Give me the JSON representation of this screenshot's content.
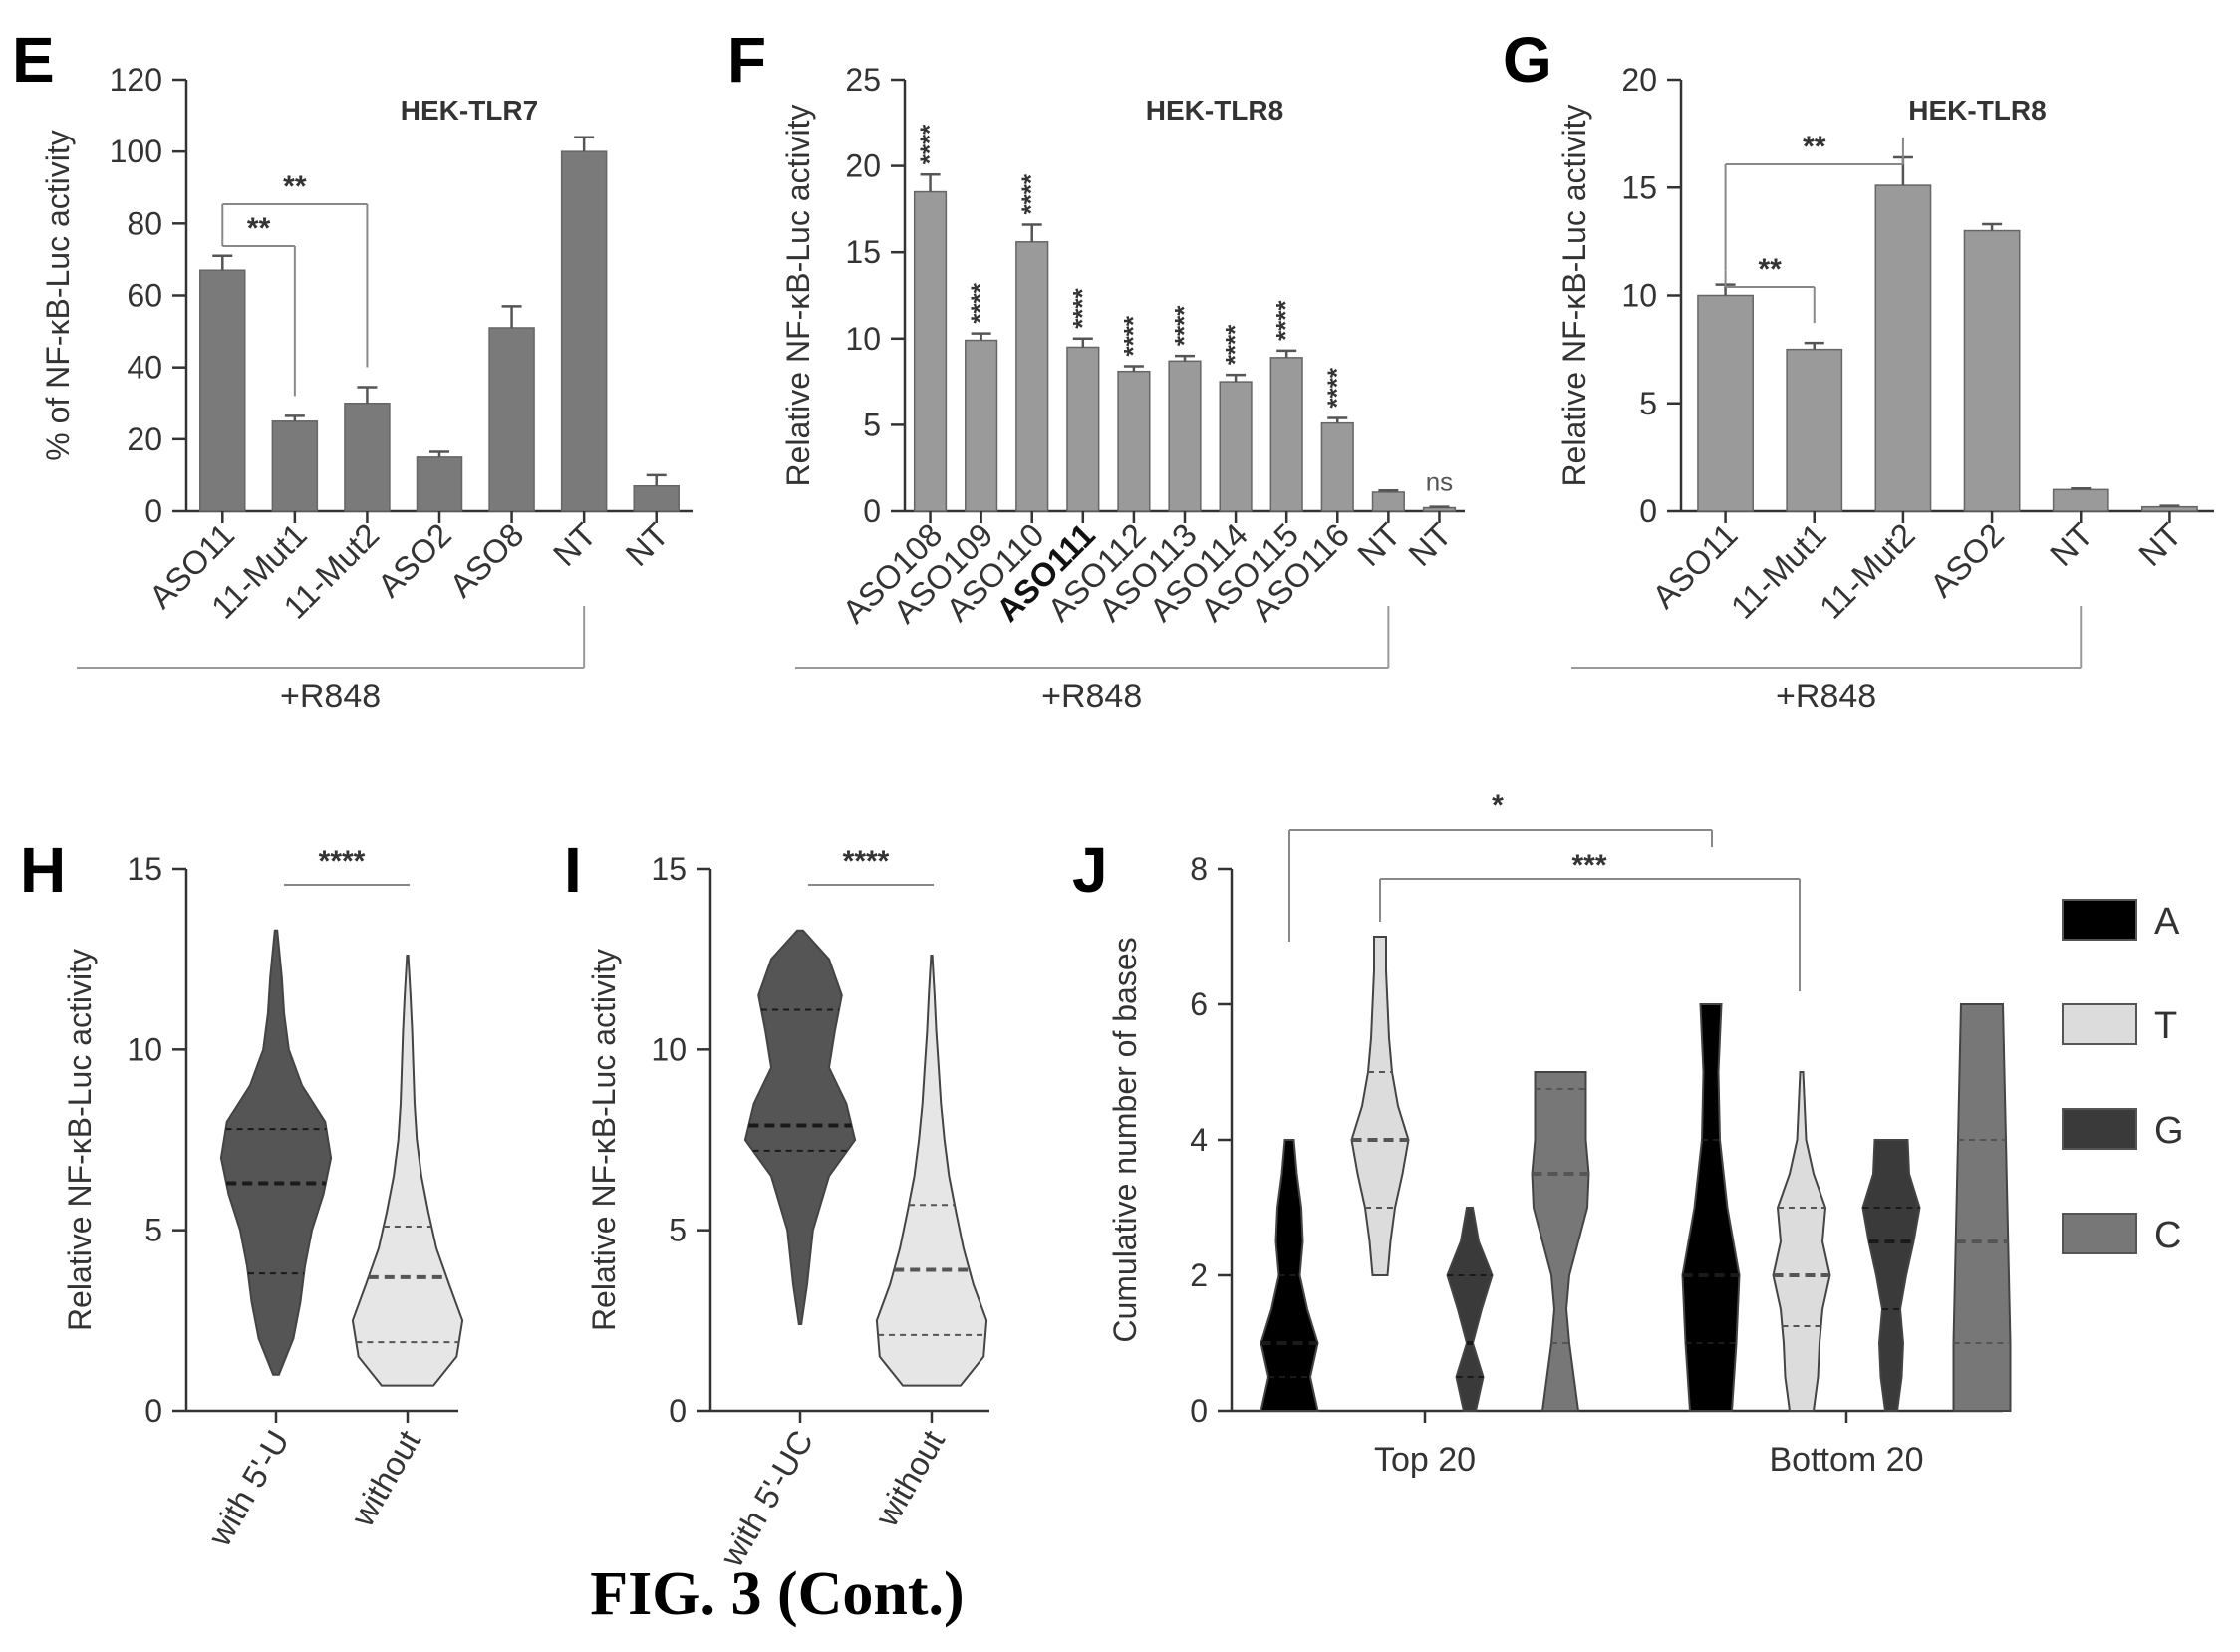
{
  "caption": "FIG. 3 (Cont.)",
  "colors": {
    "bar": "#7a7a7a",
    "barF": "#9a9a9a",
    "dark": "#555555",
    "A": "#000000",
    "T": "#dcdcdc",
    "G": "#3a3a3a",
    "C": "#777777",
    "light": "#e6e6e6"
  },
  "chart_data": [
    {
      "panel": "E",
      "type": "bar",
      "title": "HEK-TLR7",
      "ylabel": "% of NF-κB-Luc activity",
      "ylim": [
        0,
        120
      ],
      "yticks": [
        0,
        20,
        40,
        60,
        80,
        100,
        120
      ],
      "categories": [
        "ASO11",
        "11-Mut1",
        "11-Mut2",
        "ASO2",
        "ASO8",
        "NT",
        "NT"
      ],
      "values": [
        67,
        25,
        30,
        15,
        51,
        100,
        7
      ],
      "errors": [
        4,
        1.5,
        4.5,
        1.5,
        6,
        4,
        3
      ],
      "bracket_label": "+R848",
      "annotations": [
        {
          "text": "**",
          "from": "ASO11",
          "to": "11-Mut1"
        },
        {
          "text": "**",
          "from": "ASO11",
          "to": "11-Mut2"
        }
      ]
    },
    {
      "panel": "F",
      "type": "bar",
      "title": "HEK-TLR8",
      "ylabel": "Relative NF-κB-Luc activity",
      "ylim": [
        0,
        25
      ],
      "yticks": [
        0,
        5,
        10,
        15,
        20,
        25
      ],
      "categories": [
        "ASO108",
        "ASO109",
        "ASO110",
        "ASO111",
        "ASO112",
        "ASO113",
        "ASO114",
        "ASO115",
        "ASO116",
        "NT",
        "NT"
      ],
      "bold_category": "ASO111",
      "values": [
        18.5,
        9.9,
        15.6,
        9.5,
        8.1,
        8.7,
        7.5,
        8.9,
        5.1,
        1.1,
        0.2
      ],
      "errors": [
        1.0,
        0.4,
        1.0,
        0.5,
        0.3,
        0.3,
        0.4,
        0.4,
        0.3,
        0.1,
        0.05
      ],
      "significance": [
        "****",
        "****",
        "****",
        "****",
        "****",
        "****",
        "****",
        "****",
        "****",
        "",
        "ns"
      ],
      "bracket_label": "+R848"
    },
    {
      "panel": "G",
      "type": "bar",
      "title": "HEK-TLR8",
      "ylabel": "Relative NF-κB-Luc activity",
      "ylim": [
        0,
        20
      ],
      "yticks": [
        0,
        5,
        10,
        15,
        20
      ],
      "categories": [
        "ASO11",
        "11-Mut1",
        "11-Mut2",
        "ASO2",
        "NT",
        "NT"
      ],
      "values": [
        10.0,
        7.5,
        15.1,
        13.0,
        1.0,
        0.2
      ],
      "errors": [
        0.5,
        0.3,
        1.3,
        0.3,
        0.05,
        0.05
      ],
      "bracket_label": "+R848",
      "annotations": [
        {
          "text": "**",
          "from": "ASO11",
          "to": "11-Mut2"
        },
        {
          "text": "**",
          "from": "ASO11",
          "to": "11-Mut1"
        }
      ]
    },
    {
      "panel": "H",
      "type": "violin",
      "ylabel": "Relative NF-κB-Luc activity",
      "ylim": [
        0,
        15
      ],
      "yticks": [
        0,
        5,
        10,
        15
      ],
      "categories": [
        "with 5'-U",
        "without"
      ],
      "violins": [
        {
          "min": 1.0,
          "max": 13.3,
          "median": 6.3,
          "q1": 3.8,
          "q3": 7.8,
          "fill": "dark",
          "profile": [
            [
              1.0,
              0.05
            ],
            [
              2,
              0.3
            ],
            [
              3,
              0.42
            ],
            [
              4,
              0.5
            ],
            [
              5,
              0.62
            ],
            [
              6,
              0.82
            ],
            [
              7,
              0.95
            ],
            [
              8,
              0.85
            ],
            [
              9,
              0.45
            ],
            [
              10,
              0.22
            ],
            [
              11,
              0.14
            ],
            [
              12,
              0.1
            ],
            [
              13.3,
              0.02
            ]
          ]
        },
        {
          "min": 0.7,
          "max": 12.6,
          "median": 3.7,
          "q1": 1.9,
          "q3": 5.1,
          "fill": "light",
          "profile": [
            [
              0.7,
              0.45
            ],
            [
              1.5,
              0.85
            ],
            [
              2.5,
              0.95
            ],
            [
              3.5,
              0.72
            ],
            [
              4.5,
              0.5
            ],
            [
              5.5,
              0.36
            ],
            [
              6.5,
              0.24
            ],
            [
              7.5,
              0.16
            ],
            [
              8.5,
              0.12
            ],
            [
              9.5,
              0.1
            ],
            [
              10.5,
              0.08
            ],
            [
              11.5,
              0.05
            ],
            [
              12.6,
              0.01
            ]
          ]
        }
      ],
      "annotations": [
        {
          "text": "****",
          "from": 0,
          "to": 1
        }
      ]
    },
    {
      "panel": "I",
      "type": "violin",
      "ylabel": "Relative NF-κB-Luc activity",
      "ylim": [
        0,
        15
      ],
      "yticks": [
        0,
        5,
        10,
        15
      ],
      "categories": [
        "with 5'-UC",
        "without"
      ],
      "violins": [
        {
          "min": 2.4,
          "max": 13.3,
          "median": 7.9,
          "q1": 7.2,
          "q3": 11.1,
          "fill": "dark",
          "profile": [
            [
              2.4,
              0.02
            ],
            [
              3.5,
              0.12
            ],
            [
              5,
              0.22
            ],
            [
              6.5,
              0.5
            ],
            [
              7.5,
              0.95
            ],
            [
              8.5,
              0.8
            ],
            [
              9.5,
              0.5
            ],
            [
              10.5,
              0.6
            ],
            [
              11.5,
              0.72
            ],
            [
              12.5,
              0.5
            ],
            [
              13.3,
              0.05
            ]
          ]
        },
        {
          "min": 0.7,
          "max": 12.6,
          "median": 3.9,
          "q1": 2.1,
          "q3": 5.7,
          "fill": "light",
          "profile": [
            [
              0.7,
              0.5
            ],
            [
              1.5,
              0.9
            ],
            [
              2.5,
              0.95
            ],
            [
              3.5,
              0.72
            ],
            [
              4.5,
              0.55
            ],
            [
              5.5,
              0.42
            ],
            [
              6.5,
              0.3
            ],
            [
              7.5,
              0.22
            ],
            [
              8.5,
              0.16
            ],
            [
              9.5,
              0.12
            ],
            [
              10.5,
              0.08
            ],
            [
              11.5,
              0.05
            ],
            [
              12.6,
              0.01
            ]
          ]
        }
      ],
      "annotations": [
        {
          "text": "****",
          "from": 0,
          "to": 1
        }
      ]
    },
    {
      "panel": "J",
      "type": "violin",
      "ylabel": "Cumulative number of bases",
      "ylim": [
        0,
        8
      ],
      "yticks": [
        0,
        2,
        4,
        6,
        8
      ],
      "groups": [
        "Top 20",
        "Bottom 20"
      ],
      "legend": [
        {
          "label": "A",
          "fill": "A"
        },
        {
          "label": "T",
          "fill": "T"
        },
        {
          "label": "G",
          "fill": "G"
        },
        {
          "label": "C",
          "fill": "C"
        }
      ],
      "violins": [
        {
          "group": "Top 20",
          "base": "A",
          "min": 0,
          "max": 4,
          "median": 1.0,
          "q1": 0.5,
          "q3": 2.0,
          "fill": "A",
          "profile": [
            [
              0,
              0.95
            ],
            [
              0.5,
              0.7
            ],
            [
              1,
              0.95
            ],
            [
              1.5,
              0.6
            ],
            [
              2,
              0.35
            ],
            [
              2.5,
              0.45
            ],
            [
              3,
              0.4
            ],
            [
              3.5,
              0.25
            ],
            [
              4,
              0.15
            ]
          ]
        },
        {
          "group": "Top 20",
          "base": "T",
          "min": 2,
          "max": 7,
          "median": 4.0,
          "q1": 3.0,
          "q3": 5.0,
          "fill": "T",
          "profile": [
            [
              2,
              0.25
            ],
            [
              2.5,
              0.35
            ],
            [
              3,
              0.5
            ],
            [
              3.5,
              0.75
            ],
            [
              4,
              0.95
            ],
            [
              4.5,
              0.6
            ],
            [
              5,
              0.4
            ],
            [
              5.5,
              0.3
            ],
            [
              6,
              0.25
            ],
            [
              6.5,
              0.2
            ],
            [
              7,
              0.2
            ]
          ]
        },
        {
          "group": "Top 20",
          "base": "G",
          "min": 0,
          "max": 3,
          "median": 1.0,
          "q1": 0.5,
          "q3": 2.0,
          "fill": "G",
          "profile": [
            [
              0,
              0.2
            ],
            [
              0.5,
              0.45
            ],
            [
              1,
              0.1
            ],
            [
              1.5,
              0.4
            ],
            [
              2,
              0.75
            ],
            [
              2.5,
              0.3
            ],
            [
              3,
              0.1
            ]
          ]
        },
        {
          "group": "Top 20",
          "base": "C",
          "min": 0,
          "max": 5,
          "median": 3.5,
          "q1": 1.0,
          "q3": 4.75,
          "fill": "C",
          "profile": [
            [
              0,
              0.6
            ],
            [
              0.5,
              0.45
            ],
            [
              1,
              0.3
            ],
            [
              1.5,
              0.2
            ],
            [
              2,
              0.3
            ],
            [
              2.5,
              0.6
            ],
            [
              3,
              0.9
            ],
            [
              3.5,
              0.95
            ],
            [
              4,
              0.85
            ],
            [
              4.5,
              0.85
            ],
            [
              5,
              0.85
            ]
          ]
        },
        {
          "group": "Bottom 20",
          "base": "A",
          "min": 0,
          "max": 6,
          "median": 2.0,
          "q1": 1.0,
          "q3": 4.0,
          "fill": "A",
          "profile": [
            [
              0,
              0.7
            ],
            [
              1,
              0.85
            ],
            [
              2,
              0.95
            ],
            [
              3,
              0.55
            ],
            [
              4,
              0.3
            ],
            [
              5,
              0.25
            ],
            [
              6,
              0.35
            ]
          ]
        },
        {
          "group": "Bottom 20",
          "base": "T",
          "min": 0,
          "max": 5,
          "median": 2.0,
          "q1": 1.25,
          "q3": 3.0,
          "fill": "T",
          "profile": [
            [
              0,
              0.4
            ],
            [
              0.5,
              0.55
            ],
            [
              1,
              0.6
            ],
            [
              1.5,
              0.7
            ],
            [
              2,
              0.95
            ],
            [
              2.5,
              0.7
            ],
            [
              3,
              0.8
            ],
            [
              3.5,
              0.4
            ],
            [
              4,
              0.15
            ],
            [
              4.5,
              0.1
            ],
            [
              5,
              0.05
            ]
          ]
        },
        {
          "group": "Bottom 20",
          "base": "G",
          "min": 0,
          "max": 4,
          "median": 2.5,
          "q1": 1.5,
          "q3": 3.0,
          "fill": "G",
          "profile": [
            [
              0,
              0.2
            ],
            [
              0.5,
              0.35
            ],
            [
              1,
              0.4
            ],
            [
              1.5,
              0.3
            ],
            [
              2,
              0.5
            ],
            [
              2.5,
              0.75
            ],
            [
              3,
              0.95
            ],
            [
              3.5,
              0.6
            ],
            [
              4,
              0.55
            ]
          ]
        },
        {
          "group": "Bottom 20",
          "base": "C",
          "min": 0,
          "max": 6,
          "median": 2.5,
          "q1": 1.0,
          "q3": 4.0,
          "fill": "C",
          "profile": [
            [
              0,
              0.95
            ],
            [
              1,
              0.95
            ],
            [
              2,
              0.9
            ],
            [
              3,
              0.85
            ],
            [
              4,
              0.8
            ],
            [
              5,
              0.75
            ],
            [
              6,
              0.7
            ]
          ]
        }
      ],
      "annotations": [
        {
          "text": "*",
          "kind": "top"
        },
        {
          "text": "***",
          "kind": "second"
        }
      ]
    }
  ]
}
